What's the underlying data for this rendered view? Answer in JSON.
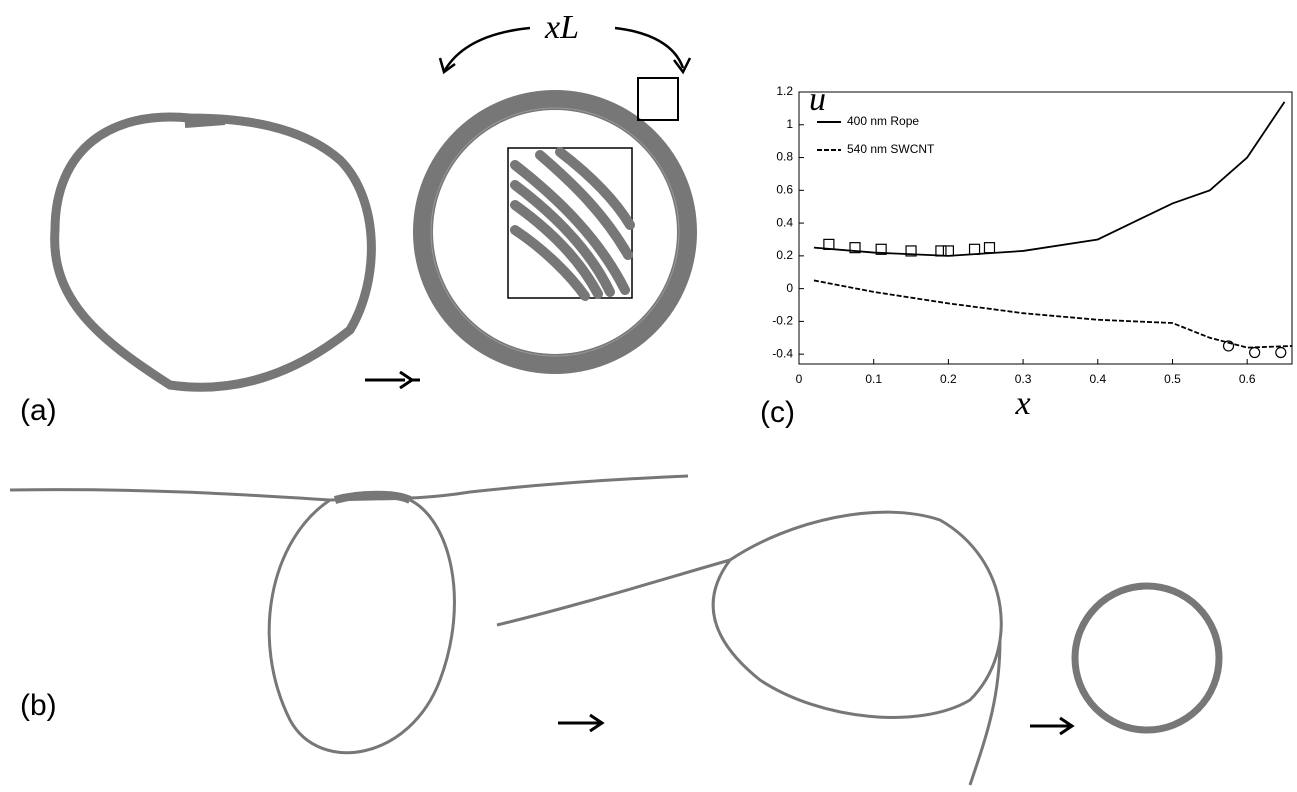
{
  "panels": {
    "a": {
      "label": "(a)",
      "annotation": "xL"
    },
    "b": {
      "label": "(b)"
    },
    "c": {
      "label": "(c)"
    }
  },
  "chart_data": {
    "type": "line",
    "ylabel": "u",
    "xlabel": "x",
    "xlim": [
      0,
      0.66
    ],
    "ylim": [
      -0.46,
      1.2
    ],
    "xticks": [
      0,
      0.1,
      0.2,
      0.3,
      0.4,
      0.5,
      0.6
    ],
    "yticks": [
      -0.4,
      -0.2,
      0,
      0.2,
      0.4,
      0.6,
      0.8,
      1,
      1.2
    ],
    "legend": "top-left",
    "series": [
      {
        "name": "400 nm Rope",
        "color": "#000000",
        "style": "solid",
        "x": [
          0.02,
          0.1,
          0.2,
          0.3,
          0.4,
          0.5,
          0.55,
          0.6,
          0.65
        ],
        "y": [
          0.25,
          0.22,
          0.2,
          0.23,
          0.3,
          0.52,
          0.6,
          0.8,
          1.14
        ]
      },
      {
        "name": "540 nm SWCNT",
        "color": "#000000",
        "style": "dashed",
        "x": [
          0.02,
          0.1,
          0.2,
          0.3,
          0.4,
          0.5,
          0.55,
          0.6,
          0.66
        ],
        "y": [
          0.05,
          -0.02,
          -0.09,
          -0.15,
          -0.19,
          -0.21,
          -0.3,
          -0.36,
          -0.35
        ]
      },
      {
        "color": "#000000",
        "marker": "square",
        "x": [
          0.04,
          0.075,
          0.11,
          0.15,
          0.19,
          0.2,
          0.235,
          0.255
        ],
        "y": [
          0.27,
          0.25,
          0.24,
          0.23,
          0.23,
          0.23,
          0.24,
          0.25
        ]
      },
      {
        "color": "#000000",
        "marker": "circle",
        "x": [
          0.575,
          0.61,
          0.645
        ],
        "y": [
          -0.35,
          -0.39,
          -0.39
        ]
      }
    ]
  }
}
